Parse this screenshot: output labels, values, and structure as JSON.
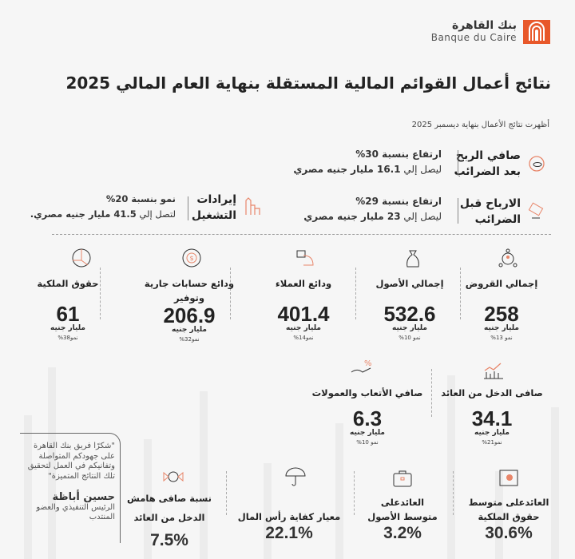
{
  "brand": {
    "name_ar": "بنك القاهرة",
    "name_en": "Banque du Caire",
    "color": "#e8582a"
  },
  "title": "نتائج أعمال القوائم المالية المستقلة بنهاية العام المالي 2025",
  "subtitle": "أظهرت نتائج الأعمال بنهاية ديسمبر 2025",
  "highlights": [
    {
      "icon": "coins-icon",
      "title": [
        "صافي الربح",
        "بعد الضرائب"
      ],
      "growth": "ارتفاع بنسبة 30%",
      "desc_pre": "ليصل إلي",
      "desc_value": "16.1 مليار جنيه مصري"
    },
    {
      "icon": "money-hand-icon",
      "title": [
        "الارباح قبل",
        "الضرائب"
      ],
      "growth": "ارتفاع بنسبة 29%",
      "desc_pre": "ليصل إلي",
      "desc_value": "23 مليار جنيه مصري"
    },
    {
      "icon": "bar-growth-icon",
      "title": [
        "إيرادات",
        "التشغيل"
      ],
      "growth": "نمو بنسبة 20%",
      "desc_pre": "لتصل إلي",
      "desc_value": "41.5 مليار جنيه مصري."
    }
  ],
  "metrics": [
    {
      "icon": "people-network-icon",
      "title": "إجمالي القروض",
      "value": "258",
      "unit": "مليار جنيه",
      "growth": "نمو 13%"
    },
    {
      "icon": "money-bag-icon",
      "title": "إجمالي الأصول",
      "value": "532.6",
      "unit": "مليار جنيه",
      "growth": "نمو 10%"
    },
    {
      "icon": "deposit-hand-icon",
      "title": "ودائع العملاء",
      "value": "401.4",
      "unit": "مليار جنيه",
      "growth": "نمو14%"
    },
    {
      "icon": "dollar-cycle-icon",
      "title": "ودائع حسابات جارية وتوفير",
      "value": "206.9",
      "unit": "مليار جنيه",
      "growth": "نمو32%"
    },
    {
      "icon": "pie-chart-icon",
      "title": "حقوق الملكية",
      "value": "61",
      "unit": "مليار جنيه",
      "growth": "نمو38%"
    },
    {
      "icon": "line-chart-icon",
      "title": "صافى الدخل من العائد",
      "value": "34.1",
      "unit": "مليار جنيه",
      "growth": "نمو21%"
    },
    {
      "icon": "percent-hand-icon",
      "title": "صافي الأتعاب والعمولات",
      "value": "6.3",
      "unit": "مليار جنيه",
      "growth": "نمو 10%"
    }
  ],
  "ratios": [
    {
      "icon": "safe-icon",
      "title": [
        "العائدعلى متوسط",
        "حقوق الملكية"
      ],
      "value": "30.6%"
    },
    {
      "icon": "briefcase-icon",
      "title": [
        "العائدعلى",
        "متوسط الأصول"
      ],
      "value": "3.2%"
    },
    {
      "icon": "umbrella-icon",
      "title": [
        "",
        "معيار كفاية رأس المال"
      ],
      "value": "22.1%"
    },
    {
      "icon": "candy-icon",
      "title": [
        "نسبة صافى هامش",
        "الدخل من العائد"
      ],
      "value": "7.5%"
    }
  ],
  "quote": {
    "text": "\"شكرًا فريق بنك القاهرة على جهودكم المتواصلة وتفانيكم في العمل لتحقيق تلك النتائج المتميزة\"",
    "name": "حسين أباظة",
    "role": "الرئيس التنفيذي والعضو المنتدب"
  }
}
